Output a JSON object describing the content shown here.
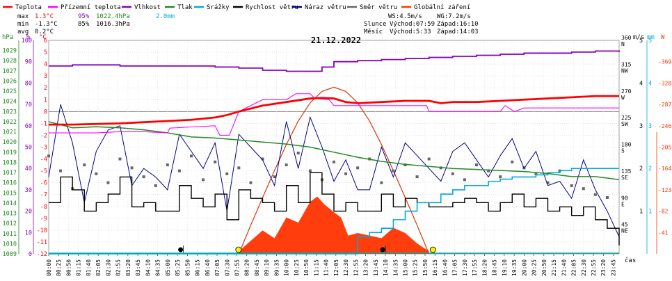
{
  "legend": [
    {
      "label": "Teplota",
      "color": "#ff0000"
    },
    {
      "label": "Přízemní teplota",
      "color": "#ff00ff"
    },
    {
      "label": "Vlhkost",
      "color": "#8800bb"
    },
    {
      "label": "Tlak",
      "color": "#228822"
    },
    {
      "label": "Srážky",
      "color": "#00aadd"
    },
    {
      "label": "Rychlost větru",
      "color": "#000000"
    },
    {
      "label": "Náraz větru",
      "color": "#000088"
    },
    {
      "label": "Směr větru",
      "color": "#666666"
    },
    {
      "label": "Globální záření",
      "color": "#ff3300"
    }
  ],
  "stats": {
    "max_label": "max",
    "min_label": "min",
    "avg_label": "avg",
    "max_temp": "1.3°C",
    "max_hum": "95%",
    "max_pres": "1022.4hPa",
    "max_rain": "2.0mm",
    "min_temp": "-1.3°C",
    "min_hum": "85%",
    "min_pres": "1016.3hPa",
    "avg_temp": "0.2°C"
  },
  "sun": {
    "ws": "WS:4.5m/s",
    "wg": "WG:7.2m/s",
    "slunce_label": "Slunce",
    "slunce_rise": "Východ:07:59",
    "slunce_set": "Západ:16:10",
    "mesic_label": "Měsíc",
    "mesic_rise": "Východ:5:33",
    "mesic_set": "Západ:14:03"
  },
  "units": {
    "hpa": "hPa",
    "pct": "%",
    "degc": "°C",
    "ms": "m/s",
    "mm": "mm",
    "w": "W",
    "cas": "čas"
  },
  "colors": {
    "temp": "#ff0000",
    "ground": "#ff00ff",
    "hum": "#8800bb",
    "pres": "#228822",
    "rain": "#00aadd",
    "wind": "#000000",
    "gust": "#000088",
    "dir": "#666666",
    "rad": "#ff3300",
    "radcurve": "#dd3300",
    "axis_hpa": "#228822",
    "axis_pct": "#8800bb",
    "axis_c": "#ff0000",
    "axis_mm": "#00aadd",
    "axis_w": "#ff3300"
  },
  "chart_data": {
    "type": "line",
    "title": "21.12.2022",
    "xlabel": "čas",
    "x_ticks": [
      "00:00",
      "00:25",
      "00:50",
      "01:15",
      "01:40",
      "02:05",
      "02:30",
      "02:55",
      "03:20",
      "03:45",
      "04:10",
      "04:35",
      "05:00",
      "05:25",
      "05:50",
      "06:15",
      "06:40",
      "07:05",
      "07:30",
      "07:55",
      "08:20",
      "08:45",
      "09:10",
      "09:35",
      "10:00",
      "10:25",
      "10:50",
      "11:15",
      "11:40",
      "12:05",
      "12:30",
      "12:55",
      "13:20",
      "13:45",
      "14:10",
      "14:35",
      "15:00",
      "15:25",
      "15:50",
      "16:15",
      "16:40",
      "17:05",
      "17:30",
      "17:55",
      "18:20",
      "18:45",
      "19:10",
      "19:35",
      "20:00",
      "20:25",
      "20:50",
      "21:15",
      "21:40",
      "22:05",
      "22:30",
      "22:55",
      "23:20",
      "23:45"
    ],
    "axes": {
      "temperature_c": {
        "min": -12,
        "max": 6,
        "ticks": [
          6,
          5,
          4,
          3,
          2,
          1,
          0,
          -1,
          -2,
          -3,
          -4,
          -5,
          -6,
          -7,
          -8,
          -9,
          -10,
          -11,
          -12
        ]
      },
      "pressure_hpa": {
        "min": 1009,
        "max": 1030,
        "ticks": [
          1029,
          1028,
          1027,
          1026,
          1025,
          1024,
          1023,
          1022,
          1021,
          1020,
          1019,
          1018,
          1017,
          1016,
          1015,
          1014,
          1013,
          1012,
          1011,
          1010,
          1009
        ]
      },
      "humidity_pct": {
        "min": 0,
        "max": 100,
        "ticks": [
          100,
          90,
          80,
          70,
          60,
          50,
          40,
          30,
          20,
          10,
          0
        ]
      },
      "wind_ms": {
        "min": 0,
        "max": 5,
        "ticks": [
          5,
          4,
          3,
          2,
          1
        ]
      },
      "rain_mm": {
        "min": 0,
        "max": 5,
        "ticks": [
          5,
          4,
          3,
          2,
          1
        ]
      },
      "radiation_w": {
        "min": 0,
        "max": 410,
        "ticks": [
          369,
          328,
          287,
          246,
          205,
          164,
          123,
          82,
          41
        ]
      },
      "direction": {
        "min": 0,
        "max": 360,
        "ticks": [
          {
            "v": 360,
            "deg": "360",
            "dir": "N"
          },
          {
            "v": 315,
            "deg": "315",
            "dir": "NW"
          },
          {
            "v": 270,
            "deg": "270",
            "dir": "W"
          },
          {
            "v": 225,
            "deg": "225",
            "dir": "SW"
          },
          {
            "v": 180,
            "deg": "180",
            "dir": "S"
          },
          {
            "v": 135,
            "deg": "135",
            "dir": "SE"
          },
          {
            "v": 90,
            "deg": "90",
            "dir": "E"
          },
          {
            "v": 45,
            "deg": "45",
            "dir": "NE"
          }
        ]
      }
    },
    "series": [
      {
        "name": "Teplota",
        "unit": "°C",
        "x": [
          0,
          1,
          2,
          3,
          4,
          5,
          6,
          7,
          7.5,
          8,
          9,
          10,
          11,
          11.5,
          12,
          12.5,
          13,
          14,
          15,
          16,
          16.5,
          17,
          18,
          19,
          20,
          21,
          22,
          23,
          24
        ],
        "values": [
          -1.1,
          -1.1,
          -1.05,
          -1.0,
          -0.9,
          -0.8,
          -0.7,
          -0.5,
          -0.3,
          0.0,
          0.5,
          0.8,
          1.1,
          1.15,
          1.1,
          0.8,
          0.7,
          0.8,
          0.9,
          0.9,
          0.7,
          0.8,
          0.8,
          0.9,
          1.0,
          1.1,
          1.2,
          1.3,
          1.3
        ]
      },
      {
        "name": "Přízemní teplota",
        "unit": "°C",
        "x": [
          0,
          1,
          2,
          3,
          4,
          5,
          5.1,
          6,
          7,
          7.2,
          7.6,
          8,
          9,
          10,
          10.4,
          11,
          11.2,
          11.8,
          12,
          13,
          14,
          15,
          15.9,
          16,
          17,
          18,
          19,
          19.2,
          19.6,
          20,
          21,
          22,
          23,
          24
        ],
        "values": [
          -1.8,
          -1.8,
          -1.8,
          -1.7,
          -1.7,
          -1.8,
          -1.4,
          -1.3,
          -1.2,
          -2.0,
          -2.0,
          0.0,
          1.0,
          1.0,
          1.5,
          1.5,
          1.1,
          1.0,
          0.5,
          0.5,
          0.5,
          0.5,
          0.5,
          0.0,
          0.0,
          0.0,
          0.0,
          0.5,
          0.0,
          0.3,
          0.3,
          0.3,
          0.3,
          0.3
        ]
      },
      {
        "name": "Vlhkost",
        "unit": "%",
        "x": [
          0,
          1,
          2,
          3,
          4,
          5,
          6,
          7,
          8,
          9,
          10,
          11,
          11.5,
          12,
          13,
          14,
          15,
          16,
          17,
          18,
          19,
          20,
          21,
          22,
          23,
          24
        ],
        "values": [
          88,
          88.5,
          88.5,
          88,
          88,
          88,
          88,
          87.5,
          87,
          86,
          85.5,
          85.5,
          87.5,
          90,
          90.5,
          91,
          91.5,
          92,
          92.5,
          93,
          93.5,
          94,
          94,
          94.5,
          95,
          94.5
        ]
      },
      {
        "name": "Tlak",
        "unit": "hPa",
        "x": [
          0,
          1,
          2,
          3,
          4,
          5,
          6,
          7,
          8,
          9,
          10,
          11,
          12,
          13,
          14,
          15,
          16,
          17,
          18,
          19,
          20,
          21,
          22,
          23,
          24
        ],
        "values": [
          1022.0,
          1021.4,
          1021.5,
          1021.4,
          1021.2,
          1020.9,
          1020.5,
          1020.4,
          1020.2,
          1020.0,
          1019.8,
          1019.5,
          1019.0,
          1018.5,
          1018.1,
          1017.8,
          1017.6,
          1017.4,
          1017.3,
          1017.2,
          1017.1,
          1016.9,
          1016.6,
          1016.6,
          1016.3
        ]
      },
      {
        "name": "Srážky",
        "unit": "mm",
        "x": [
          0,
          12.5,
          13,
          13.5,
          14,
          14.5,
          15,
          15.5,
          16,
          16.5,
          17,
          17.5,
          18,
          18.5,
          19,
          19.5,
          20,
          20.5,
          21,
          21.5,
          22,
          22.5,
          23,
          24
        ],
        "values": [
          0,
          0,
          0.4,
          0.5,
          0.6,
          0.8,
          1.0,
          1.2,
          1.2,
          1.4,
          1.5,
          1.6,
          1.6,
          1.7,
          1.75,
          1.8,
          1.8,
          1.85,
          1.9,
          1.95,
          2.0,
          2.0,
          2.0,
          2.0
        ]
      },
      {
        "name": "Globální záření",
        "unit": "W",
        "x": [
          8,
          8.5,
          9,
          9.5,
          10,
          10.5,
          11,
          11.3,
          11.6,
          12,
          12.3,
          12.6,
          13,
          13.5,
          14,
          14.5,
          15,
          15.5,
          16
        ],
        "values": [
          5,
          25,
          45,
          30,
          70,
          60,
          100,
          110,
          95,
          80,
          70,
          35,
          40,
          35,
          30,
          50,
          40,
          20,
          5
        ]
      },
      {
        "name": "Rychlost větru",
        "unit": "m/s",
        "x": [
          0,
          0.5,
          1,
          1.5,
          2,
          2.5,
          3,
          3.5,
          4,
          4.5,
          5,
          5.5,
          6,
          6.5,
          7,
          7.5,
          8,
          8.5,
          9,
          9.5,
          10,
          10.5,
          11,
          11.5,
          12,
          12.5,
          13,
          13.5,
          14,
          14.5,
          15,
          15.5,
          16,
          16.5,
          17,
          17.5,
          18,
          18.5,
          19,
          19.5,
          20,
          20.5,
          21,
          21.5,
          22,
          22.5,
          23,
          23.5,
          24
        ],
        "values": [
          1.2,
          1.8,
          1.5,
          1.0,
          1.2,
          1.4,
          1.8,
          1.1,
          1.2,
          1.0,
          1.0,
          1.6,
          1.3,
          1.1,
          1.4,
          0.8,
          1.5,
          1.3,
          1.2,
          1.0,
          1.6,
          1.2,
          1.9,
          1.4,
          1.0,
          1.2,
          1.0,
          1.0,
          1.4,
          1.1,
          1.3,
          1.2,
          1.1,
          1.1,
          1.2,
          1.3,
          1.2,
          1.0,
          1.2,
          1.4,
          1.1,
          1.3,
          1.0,
          1.1,
          0.9,
          1.1,
          0.8,
          0.6,
          0.2
        ]
      },
      {
        "name": "Náraz větru",
        "unit": "m/s",
        "x": [
          0,
          0.5,
          1,
          1.5,
          2,
          2.5,
          3,
          3.5,
          4,
          4.5,
          5,
          5.5,
          6,
          6.5,
          7,
          7.5,
          8,
          8.5,
          9,
          9.5,
          10,
          10.5,
          11,
          11.5,
          12,
          12.5,
          13,
          13.5,
          14,
          14.5,
          15,
          15.5,
          16,
          16.5,
          17,
          17.5,
          18,
          18.5,
          19,
          19.5,
          20,
          20.5,
          21,
          21.5,
          22,
          22.5,
          23,
          23.5,
          24
        ],
        "values": [
          1.8,
          3.5,
          2.6,
          1.2,
          2.4,
          2.9,
          3.0,
          1.6,
          2.0,
          1.8,
          1.5,
          2.8,
          2.4,
          2.0,
          2.6,
          1.0,
          2.8,
          2.5,
          2.2,
          1.6,
          3.1,
          2.0,
          3.2,
          2.5,
          1.7,
          2.2,
          1.5,
          1.5,
          2.5,
          1.8,
          2.6,
          2.3,
          2.0,
          1.7,
          2.4,
          2.6,
          2.2,
          1.8,
          2.3,
          2.7,
          2.0,
          2.4,
          1.6,
          1.7,
          1.3,
          2.2,
          1.5,
          1.0,
          0.4
        ]
      },
      {
        "name": "Směr větru",
        "unit": "°",
        "x": [
          0,
          0.5,
          1,
          1.5,
          2,
          2.5,
          3,
          3.5,
          4,
          4.5,
          5,
          5.5,
          6,
          6.5,
          7,
          7.5,
          8,
          8.5,
          9,
          9.5,
          10,
          10.5,
          11,
          11.5,
          12,
          12.5,
          13,
          13.5,
          14,
          14.5,
          15,
          15.5,
          16,
          16.5,
          17,
          17.5,
          18,
          18.5,
          19,
          19.5,
          20,
          20.5,
          21,
          21.5,
          22,
          22.5,
          23,
          23.5
        ],
        "values": [
          165,
          140,
          110,
          150,
          135,
          120,
          160,
          145,
          130,
          115,
          150,
          140,
          165,
          125,
          155,
          135,
          145,
          120,
          160,
          130,
          150,
          170,
          140,
          125,
          155,
          135,
          145,
          160,
          120,
          140,
          150,
          130,
          160,
          145,
          135,
          125,
          150,
          140,
          130,
          155,
          145,
          135,
          120,
          140,
          115,
          110,
          100,
          95
        ]
      }
    ],
    "radiation_theoretical": {
      "name": "Globální záření (teoretické)",
      "unit": "W",
      "x": [
        8,
        8.5,
        9,
        9.5,
        10,
        10.5,
        11,
        11.5,
        12,
        12.5,
        13,
        13.5,
        14,
        14.5,
        15,
        15.5,
        16
      ],
      "values": [
        0,
        55,
        108,
        160,
        210,
        255,
        290,
        312,
        320,
        312,
        290,
        255,
        210,
        160,
        108,
        55,
        0
      ]
    },
    "markers": {
      "sunrise": "07:59",
      "sunset": "16:10",
      "moonrise": "5:33",
      "moonset": "14:03"
    }
  }
}
